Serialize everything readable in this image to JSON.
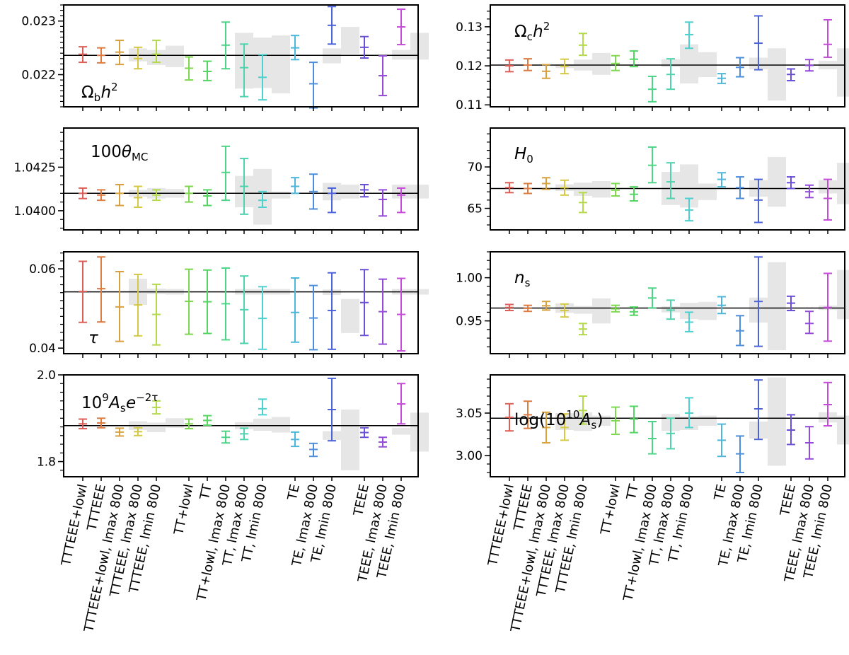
{
  "chart_data": {
    "type": "errorbar",
    "categories": [
      "TTTEEE+lowl",
      "TTTEEE",
      "TTTEEE+lowl, lmax 800",
      "TTTEEE, lmax 800",
      "TTTEEE, lmin 800",
      "TT+lowl",
      "TT",
      "TT+lowl, lmax 800",
      "TT, lmax 800",
      "TT, lmin 800",
      "TE",
      "TE, lmax 800",
      "TE, lmin 800",
      "TEEE",
      "TEEE, lmax 800",
      "TEEE, lmin 800"
    ],
    "colors": [
      "#dd5f58",
      "#dc7b42",
      "#d8a03e",
      "#d4c944",
      "#b4d94a",
      "#7dd74f",
      "#55d562",
      "#4ed487",
      "#4fd3ae",
      "#4cd0d0",
      "#4db6da",
      "#4d8edc",
      "#4d63dc",
      "#6a4fd9",
      "#944bd8",
      "#c54bd9"
    ],
    "panels": [
      {
        "param": "omega_b",
        "label": "Ωbh²",
        "ylim": [
          0.0214,
          0.0233
        ],
        "yticks": [
          0.022,
          0.023
        ],
        "yticklabels": [
          "0.022",
          "0.023"
        ],
        "minor_step": 0.0001,
        "reference": 0.02236,
        "center": [
          0.02238,
          0.02236,
          0.02242,
          0.0223,
          0.02238,
          0.02212,
          0.02206,
          0.02255,
          0.02213,
          0.02195,
          0.0225,
          0.02183,
          0.02292,
          0.02251,
          0.02198,
          0.02289
        ],
        "lower": [
          0.02223,
          0.02222,
          0.02219,
          0.02211,
          0.02223,
          0.0219,
          0.02189,
          0.02211,
          0.02159,
          0.02153,
          0.02228,
          0.02138,
          0.02257,
          0.02231,
          0.02161,
          0.02256
        ],
        "upper": [
          0.02252,
          0.0225,
          0.02264,
          0.02251,
          0.02264,
          0.02233,
          0.02225,
          0.02298,
          0.02257,
          0.02237,
          0.02273,
          0.02223,
          0.02327,
          0.02271,
          0.02235,
          0.02322
        ],
        "band": [
          null,
          null,
          0.02237,
          0.02232,
          0.02234,
          null,
          null,
          0.02226,
          0.02222,
          0.02219,
          null,
          0.02235,
          0.02264,
          null,
          0.02237,
          0.02253
        ],
        "band_half": [
          null,
          null,
          0.00012,
          0.00014,
          0.0002,
          null,
          null,
          0.00052,
          0.00047,
          0.00054,
          null,
          0.00014,
          0.00025,
          null,
          9e-05,
          0.00025
        ]
      },
      {
        "param": "omega_c",
        "label": "Ωch²",
        "ylim": [
          0.1095,
          0.1356
        ],
        "yticks": [
          0.11,
          0.12,
          0.13
        ],
        "yticklabels": [
          "0.11",
          "0.12",
          "0.13"
        ],
        "minor_step": 0.002,
        "reference": 0.1202,
        "center": [
          0.12,
          0.1202,
          0.1186,
          0.1199,
          0.1253,
          0.1206,
          0.1217,
          0.114,
          0.1178,
          0.128,
          0.1168,
          0.1196,
          0.1258,
          0.1178,
          0.1201,
          0.1255
        ],
        "lower": [
          0.1185,
          0.1188,
          0.1168,
          0.118,
          0.1227,
          0.1188,
          0.1198,
          0.1108,
          0.114,
          0.1245,
          0.1155,
          0.1172,
          0.119,
          0.1162,
          0.1187,
          0.1222
        ],
        "upper": [
          0.1215,
          0.1218,
          0.1203,
          0.1217,
          0.1283,
          0.1226,
          0.1238,
          0.1173,
          0.1218,
          0.1312,
          0.118,
          0.1221,
          0.1328,
          0.1192,
          0.1216,
          0.1318
        ],
        "band": [
          null,
          null,
          0.1199,
          0.1202,
          0.1205,
          null,
          null,
          0.1207,
          0.1205,
          0.1203,
          null,
          0.1206,
          0.1178,
          null,
          0.1202,
          0.1183
        ],
        "band_half": [
          null,
          null,
          0.0005,
          0.0014,
          0.0028,
          null,
          null,
          0.001,
          0.005,
          0.0032,
          null,
          0.0015,
          0.0067,
          null,
          0.0011,
          0.0062
        ]
      },
      {
        "param": "theta_mc",
        "label": "100θMC",
        "ylim": [
          1.0389,
          1.04475
        ],
        "yticks": [
          1.04,
          1.0425
        ],
        "yticklabels": [
          "1.0400",
          "1.0425"
        ],
        "minor_step": 0.0005,
        "reference": 1.041,
        "center": [
          1.041,
          1.0409,
          1.041,
          1.04075,
          1.0409,
          1.041,
          1.04085,
          1.0422,
          1.0414,
          1.0406,
          1.0414,
          1.0411,
          1.041,
          1.0412,
          1.04065,
          1.0409
        ],
        "lower": [
          1.0407,
          1.0406,
          1.0403,
          1.0402,
          1.0406,
          1.0405,
          1.0403,
          1.0406,
          1.0398,
          1.0402,
          1.041,
          1.0401,
          1.0399,
          1.0408,
          1.0397,
          1.0399
        ],
        "upper": [
          1.0413,
          1.0412,
          1.0415,
          1.0414,
          1.0412,
          1.0414,
          1.0412,
          1.0437,
          1.043,
          1.0411,
          1.0419,
          1.0421,
          1.0413,
          1.0415,
          1.0412,
          1.0413
        ],
        "band": [
          null,
          null,
          1.041,
          1.041,
          1.041,
          null,
          null,
          1.0411,
          1.0408,
          1.0409,
          null,
          1.0411,
          1.0411,
          null,
          1.0411,
          1.0411
        ],
        "band_half": [
          null,
          null,
          0.0002,
          0.0003,
          0.00025,
          null,
          null,
          0.0009,
          0.0016,
          0.0002,
          null,
          0.0005,
          0.0004,
          null,
          0.0004,
          0.0004
        ]
      },
      {
        "param": "H0",
        "label": "H0",
        "ylim": [
          62.4,
          74.7
        ],
        "yticks": [
          65,
          70
        ],
        "yticklabels": [
          "65",
          "70"
        ],
        "minor_step": 1,
        "reference": 67.4,
        "center": [
          67.5,
          67.4,
          68.0,
          67.5,
          65.7,
          67.2,
          66.7,
          70.2,
          68.2,
          64.8,
          68.5,
          67.5,
          66.0,
          68.1,
          67.0,
          66.2
        ],
        "lower": [
          66.9,
          66.8,
          67.3,
          66.6,
          64.5,
          66.5,
          65.9,
          68.1,
          66.2,
          63.5,
          67.6,
          66.2,
          63.3,
          67.4,
          66.3,
          63.6
        ],
        "upper": [
          68.1,
          68.0,
          68.7,
          68.4,
          66.9,
          68.0,
          67.6,
          72.4,
          70.5,
          66.2,
          69.3,
          68.8,
          68.5,
          68.8,
          67.8,
          68.5
        ],
        "band": [
          null,
          null,
          67.5,
          67.3,
          67.3,
          null,
          null,
          67.4,
          67.7,
          67.0,
          null,
          67.4,
          68.2,
          null,
          67.6,
          68.0
        ],
        "band_half": [
          null,
          null,
          0.4,
          0.8,
          1.0,
          null,
          null,
          2.0,
          2.6,
          1.0,
          null,
          1.0,
          3.0,
          null,
          0.8,
          2.5
        ]
      },
      {
        "param": "tau",
        "label": "τ",
        "ylim": [
          0.0386,
          0.0643
        ],
        "yticks": [
          0.04,
          0.06
        ],
        "yticklabels": [
          "0.04",
          "0.06"
        ],
        "minor_step": 0.002,
        "reference": 0.0542,
        "center": [
          0.0543,
          0.055,
          0.0504,
          0.0509,
          0.0485,
          0.0518,
          0.0517,
          0.0512,
          0.0497,
          0.0475,
          0.049,
          0.0476,
          0.0495,
          0.0515,
          0.0492,
          0.0485
        ],
        "lower": [
          0.0465,
          0.0466,
          0.0417,
          0.0431,
          0.0408,
          0.0435,
          0.0437,
          0.0421,
          0.0412,
          0.0397,
          0.0415,
          0.0396,
          0.0397,
          0.0432,
          0.041,
          0.0393
        ],
        "upper": [
          0.0619,
          0.063,
          0.0593,
          0.0586,
          0.0561,
          0.0599,
          0.0597,
          0.0602,
          0.0582,
          0.0555,
          0.0577,
          0.0558,
          0.059,
          0.0598,
          0.0574,
          0.0576
        ],
        "band": [
          null,
          null,
          0.0542,
          0.0543,
          0.0542,
          null,
          null,
          0.0542,
          0.0542,
          0.0542,
          null,
          0.0541,
          0.0481,
          null,
          0.0542,
          0.0542
        ],
        "band_half": [
          null,
          null,
          0.0033,
          0.0007,
          0.0007,
          null,
          null,
          0.0007,
          0.0007,
          0.0007,
          null,
          0.0007,
          0.0043,
          null,
          0.0007,
          0.0007
        ]
      },
      {
        "param": "n_s",
        "label": "ns",
        "ylim": [
          0.912,
          1.03
        ],
        "yticks": [
          0.95,
          1.0
        ],
        "yticklabels": [
          "0.95",
          "1.00"
        ],
        "minor_step": 0.01,
        "reference": 0.9649,
        "center": [
          0.9655,
          0.9645,
          0.9675,
          0.962,
          0.9405,
          0.964,
          0.9605,
          0.9765,
          0.9625,
          0.9485,
          0.968,
          0.9385,
          0.9725,
          0.9705,
          0.947,
          0.9655
        ],
        "lower": [
          0.962,
          0.961,
          0.9625,
          0.9545,
          0.934,
          0.9605,
          0.9565,
          0.965,
          0.952,
          0.9375,
          0.9585,
          0.9215,
          0.9205,
          0.962,
          0.9355,
          0.9265
        ],
        "upper": [
          0.969,
          0.968,
          0.9725,
          0.9695,
          0.947,
          0.968,
          0.966,
          0.988,
          0.974,
          0.96,
          0.978,
          0.956,
          1.024,
          0.9785,
          0.961,
          1.005
        ],
        "band": [
          null,
          null,
          0.9649,
          0.9627,
          0.9615,
          null,
          null,
          0.9633,
          0.9615,
          0.9615,
          null,
          0.9625,
          0.967,
          null,
          0.9653,
          0.9805
        ],
        "band_half": [
          null,
          null,
          0.0055,
          0.0045,
          0.0145,
          null,
          null,
          0.0035,
          0.0095,
          0.0105,
          null,
          0.0145,
          0.051,
          null,
          0.0025,
          0.0285
        ]
      },
      {
        "param": "A_s_e_tau",
        "label": "10⁹Ase⁻²τ",
        "ylim": [
          1.765,
          2.0
        ],
        "yticks": [
          1.8,
          2.0
        ],
        "yticklabels": [
          "1.8",
          "2.0"
        ],
        "minor_step": 0.02,
        "reference": 1.883,
        "center": [
          1.887,
          1.889,
          1.868,
          1.869,
          1.925,
          1.887,
          1.895,
          1.856,
          1.864,
          1.922,
          1.851,
          1.828,
          1.92,
          1.867,
          1.845,
          1.933
        ],
        "lower": [
          1.876,
          1.878,
          1.859,
          1.86,
          1.91,
          1.876,
          1.884,
          1.843,
          1.851,
          1.908,
          1.835,
          1.812,
          1.848,
          1.856,
          1.834,
          1.887
        ],
        "upper": [
          1.898,
          1.9,
          1.877,
          1.878,
          1.94,
          1.898,
          1.906,
          1.87,
          1.877,
          1.944,
          1.868,
          1.842,
          1.992,
          1.878,
          1.856,
          1.98
        ],
        "band": [
          null,
          null,
          1.883,
          1.879,
          1.889,
          null,
          null,
          1.883,
          1.885,
          1.885,
          null,
          1.86,
          1.85,
          null,
          1.87,
          1.868
        ],
        "band_half": [
          null,
          null,
          0.01,
          0.011,
          0.011,
          null,
          null,
          0.008,
          0.014,
          0.018,
          null,
          0.01,
          0.07,
          null,
          0.008,
          0.045
        ]
      },
      {
        "param": "log_As",
        "label": "log(10¹⁰As)",
        "ylim": [
          2.975,
          3.095
        ],
        "yticks": [
          3.0,
          3.05
        ],
        "yticklabels": [
          "3.00",
          "3.05"
        ],
        "minor_step": 0.01,
        "reference": 3.044,
        "center": [
          3.045,
          3.048,
          3.033,
          3.033,
          3.053,
          3.041,
          3.043,
          3.02,
          3.026,
          3.05,
          3.018,
          3.002,
          3.055,
          3.03,
          3.015,
          3.06
        ],
        "lower": [
          3.029,
          3.032,
          3.015,
          3.018,
          3.037,
          3.025,
          3.027,
          3.002,
          3.008,
          3.033,
          2.999,
          2.98,
          3.019,
          3.013,
          2.996,
          3.035
        ],
        "upper": [
          3.061,
          3.064,
          3.051,
          3.049,
          3.07,
          3.057,
          3.058,
          3.04,
          3.044,
          3.068,
          3.037,
          3.023,
          3.089,
          3.048,
          3.034,
          3.086
        ],
        "band": [
          null,
          null,
          3.04,
          3.04,
          3.041,
          null,
          null,
          3.039,
          3.038,
          3.041,
          null,
          3.03,
          3.04,
          null,
          3.045,
          3.03
        ],
        "band_half": [
          null,
          null,
          0.01,
          0.011,
          0.006,
          null,
          null,
          0.01,
          0.008,
          0.006,
          null,
          0.01,
          0.052,
          null,
          0.006,
          0.017
        ]
      }
    ]
  }
}
